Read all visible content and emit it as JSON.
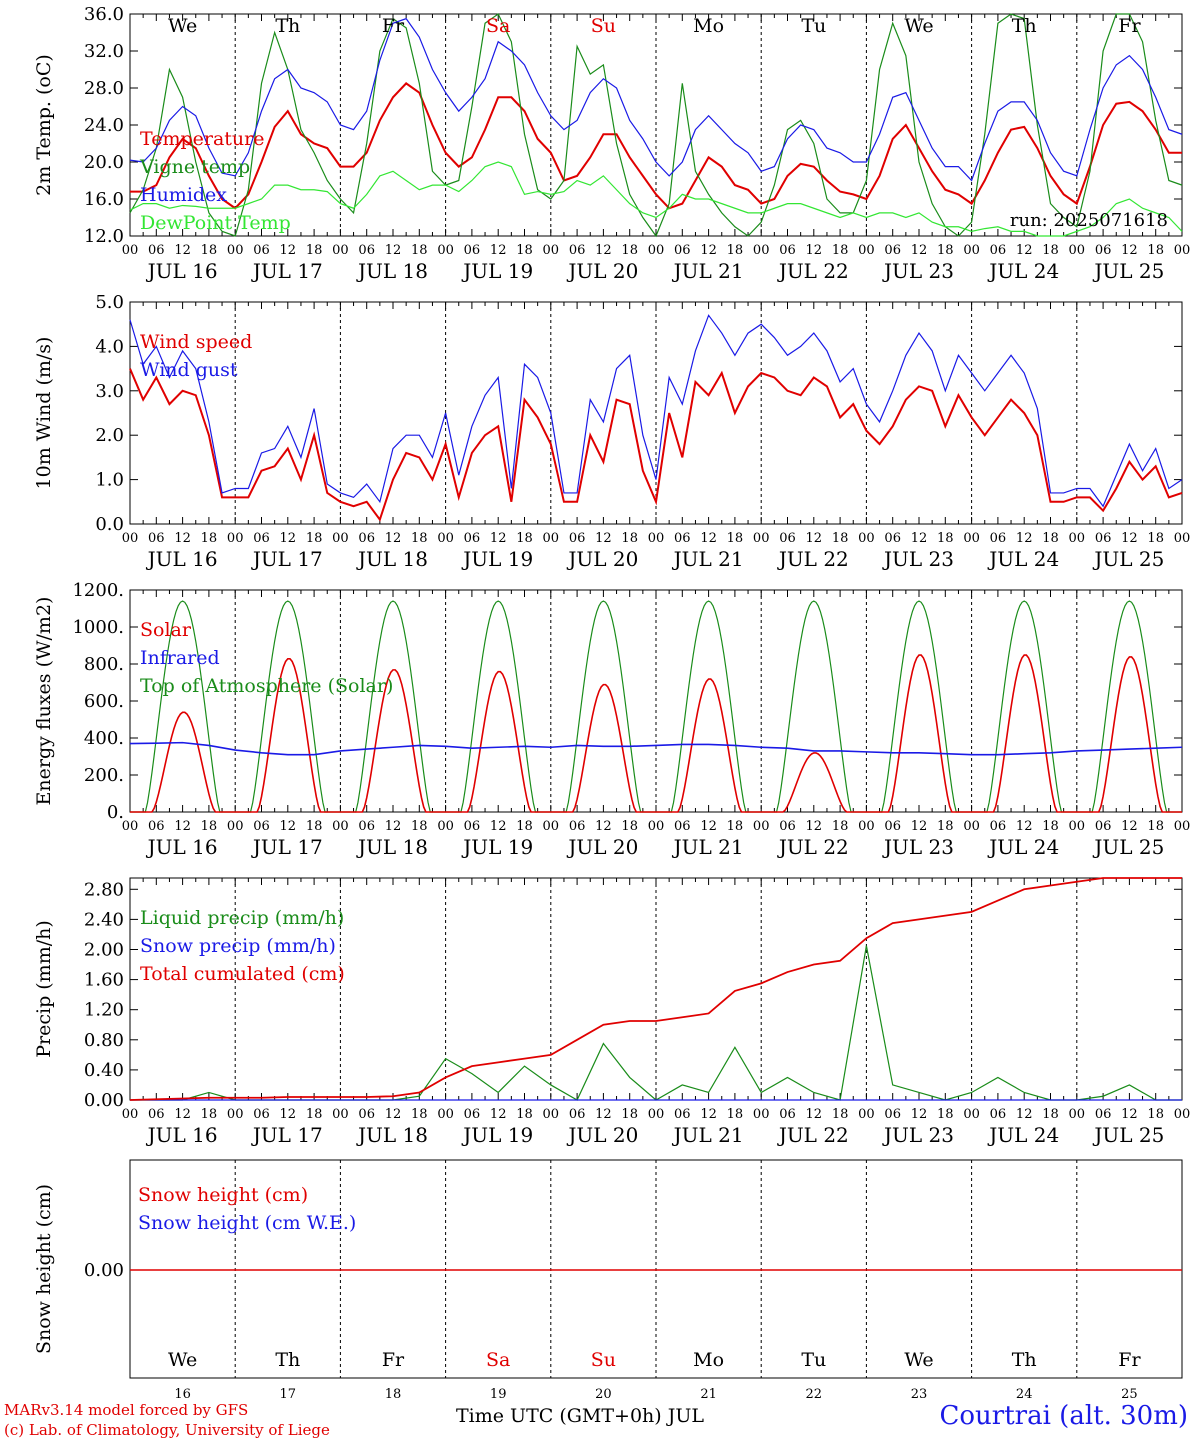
{
  "footer": {
    "model_line": "MARv3.14 model forced by GFS",
    "credit_line": "(c) Lab. of Climatology, University of Liege",
    "axis_title": "Time UTC (GMT+0h) JUL",
    "station": "Courtrai (alt. 30m)"
  },
  "run_label": "run: 2025071618",
  "colors": {
    "red": "#e00000",
    "blue": "#1a1ae6",
    "green": "#1a8c1a",
    "lightgreen": "#33e633",
    "axis": "#000000"
  },
  "days": [
    "We",
    "Th",
    "Fr",
    "Sa",
    "Su",
    "Mo",
    "Tu",
    "We",
    "Th",
    "Fr"
  ],
  "weekend_days": [
    "Sa",
    "Su"
  ],
  "date_labels": [
    "JUL 16",
    "JUL 17",
    "JUL 18",
    "JUL 19",
    "JUL 20",
    "JUL 21",
    "JUL 22",
    "JUL 23",
    "JUL 24",
    "JUL 25"
  ],
  "day_numbers": [
    "16",
    "17",
    "18",
    "19",
    "20",
    "21",
    "22",
    "23",
    "24",
    "25"
  ],
  "hour_labels": [
    "00",
    "06",
    "12",
    "18"
  ],
  "chart_data": [
    {
      "type": "line",
      "ylabel": "2m Temp. (oC)",
      "yticks": [
        "12.0",
        "16.0",
        "20.0",
        "24.0",
        "28.0",
        "32.0",
        "36.0"
      ],
      "ylim": [
        12,
        36
      ],
      "x_hours": [
        0,
        3,
        6,
        9,
        12,
        15,
        18,
        21,
        24,
        27,
        30,
        33,
        36,
        39,
        42,
        45,
        48,
        51,
        54,
        57,
        60,
        63,
        66,
        69,
        72,
        75,
        78,
        81,
        84,
        87,
        90,
        93,
        96,
        99,
        102,
        105,
        108,
        111,
        114,
        117,
        120,
        123,
        126,
        129,
        132,
        135,
        138,
        141,
        144,
        147,
        150,
        153,
        156,
        159,
        162,
        165,
        168,
        171,
        174,
        177,
        180,
        183,
        186,
        189,
        192,
        195,
        198,
        201,
        204,
        207,
        210,
        213,
        216,
        219,
        222,
        225,
        228,
        231,
        234,
        237,
        240
      ],
      "series": [
        {
          "name": "Temperature",
          "color": "red",
          "values": [
            16.8,
            16.8,
            17.5,
            20.5,
            22.5,
            21.5,
            18.5,
            16.0,
            15.0,
            16.5,
            20.0,
            23.8,
            25.5,
            23.0,
            22.0,
            21.5,
            19.5,
            19.5,
            21.0,
            24.5,
            27.0,
            28.5,
            27.5,
            24.0,
            21.0,
            19.5,
            20.5,
            23.5,
            27.0,
            27.0,
            25.5,
            22.5,
            21.0,
            18.0,
            18.5,
            20.5,
            23.0,
            23.0,
            20.5,
            18.5,
            16.5,
            15.0,
            15.5,
            18.0,
            20.5,
            19.5,
            17.5,
            17.0,
            15.5,
            16.0,
            18.5,
            19.8,
            19.5,
            18.0,
            16.8,
            16.5,
            16.0,
            18.5,
            22.5,
            24.0,
            21.5,
            19.0,
            17.0,
            16.5,
            15.5,
            18.0,
            21.0,
            23.5,
            23.8,
            21.5,
            18.5,
            16.5,
            15.5,
            19.5,
            24.0,
            26.3,
            26.5,
            25.5,
            23.5,
            21.0,
            21.0
          ]
        },
        {
          "name": "Vigne temp",
          "color": "green",
          "values": [
            14.5,
            17.0,
            21.5,
            30.0,
            27.0,
            20.0,
            14.5,
            12.5,
            12.0,
            17.0,
            28.5,
            34.0,
            30.0,
            23.5,
            21.0,
            18.0,
            16.0,
            14.5,
            22.0,
            32.0,
            35.5,
            34.5,
            28.5,
            19.0,
            17.5,
            18.0,
            26.0,
            35.0,
            36.0,
            33.0,
            23.0,
            17.0,
            16.0,
            18.0,
            32.5,
            29.5,
            30.5,
            22.0,
            16.5,
            14.0,
            12.0,
            15.5,
            28.5,
            19.0,
            16.5,
            14.5,
            13.0,
            12.0,
            13.5,
            17.5,
            23.5,
            24.5,
            22.0,
            16.0,
            14.5,
            14.5,
            18.0,
            30.0,
            35.0,
            31.5,
            20.0,
            15.5,
            13.0,
            12.0,
            13.5,
            23.0,
            35.0,
            37.0,
            35.5,
            24.0,
            15.5,
            14.0,
            13.0,
            19.0,
            32.0,
            36.5,
            37.0,
            33.0,
            24.5,
            18.0,
            17.5
          ]
        },
        {
          "name": "Humidex",
          "color": "blue",
          "values": [
            20.2,
            20.0,
            21.5,
            24.5,
            26.0,
            25.0,
            21.5,
            18.8,
            18.5,
            21.0,
            25.5,
            29.0,
            30.0,
            28.0,
            27.5,
            26.5,
            24.0,
            23.5,
            25.5,
            31.0,
            35.0,
            35.5,
            33.5,
            30.0,
            27.5,
            25.5,
            27.0,
            29.0,
            33.0,
            32.0,
            30.5,
            27.5,
            25.0,
            23.5,
            24.5,
            27.5,
            29.0,
            28.0,
            24.5,
            22.5,
            20.0,
            18.5,
            20.0,
            23.5,
            25.0,
            23.5,
            22.0,
            21.0,
            19.0,
            19.5,
            22.5,
            24.0,
            23.5,
            21.5,
            21.0,
            20.0,
            20.0,
            23.0,
            27.0,
            27.5,
            24.5,
            21.5,
            19.5,
            19.5,
            18.0,
            22.0,
            25.5,
            26.5,
            26.5,
            24.5,
            21.0,
            19.0,
            18.5,
            23.5,
            28.0,
            30.5,
            31.5,
            30.0,
            27.0,
            23.5,
            23.0
          ]
        },
        {
          "name": "DewPoint Temp",
          "color": "lightgreen",
          "values": [
            14.8,
            15.5,
            15.5,
            15.0,
            15.3,
            15.2,
            15.0,
            15.0,
            15.0,
            15.5,
            16.0,
            17.5,
            17.5,
            17.0,
            17.0,
            16.8,
            15.5,
            15.0,
            16.5,
            18.5,
            19.0,
            18.0,
            17.0,
            17.5,
            17.5,
            16.8,
            18.0,
            19.5,
            20.0,
            19.5,
            16.5,
            16.8,
            16.5,
            16.8,
            18.0,
            17.5,
            18.5,
            17.0,
            15.5,
            14.5,
            14.0,
            15.0,
            16.5,
            16.0,
            16.0,
            15.5,
            15.0,
            14.5,
            14.5,
            15.0,
            15.5,
            15.5,
            15.0,
            14.5,
            14.0,
            14.5,
            14.0,
            14.5,
            14.5,
            14.0,
            14.5,
            13.5,
            13.0,
            13.0,
            12.5,
            12.8,
            13.0,
            12.5,
            12.5,
            12.0,
            12.0,
            12.0,
            12.5,
            13.0,
            14.0,
            15.5,
            16.0,
            15.0,
            14.5,
            14.0,
            12.5
          ]
        }
      ]
    },
    {
      "type": "line",
      "ylabel": "10m Wind (m/s)",
      "yticks": [
        "0.0",
        "1.0",
        "2.0",
        "3.0",
        "4.0",
        "5.0"
      ],
      "ylim": [
        0,
        5
      ],
      "x_hours": [
        0,
        3,
        6,
        9,
        12,
        15,
        18,
        21,
        24,
        27,
        30,
        33,
        36,
        39,
        42,
        45,
        48,
        51,
        54,
        57,
        60,
        63,
        66,
        69,
        72,
        75,
        78,
        81,
        84,
        87,
        90,
        93,
        96,
        99,
        102,
        105,
        108,
        111,
        114,
        117,
        120,
        123,
        126,
        129,
        132,
        135,
        138,
        141,
        144,
        147,
        150,
        153,
        156,
        159,
        162,
        165,
        168,
        171,
        174,
        177,
        180,
        183,
        186,
        189,
        192,
        195,
        198,
        201,
        204,
        207,
        210,
        213,
        216,
        219,
        222,
        225,
        228,
        231,
        234,
        237,
        240
      ],
      "series": [
        {
          "name": "Wind speed",
          "color": "red",
          "values": [
            3.5,
            2.8,
            3.3,
            2.7,
            3.0,
            2.9,
            2.0,
            0.6,
            0.6,
            0.6,
            1.2,
            1.3,
            1.7,
            1.0,
            2.0,
            0.7,
            0.5,
            0.4,
            0.5,
            0.1,
            1.0,
            1.6,
            1.5,
            1.0,
            1.8,
            0.6,
            1.6,
            2.0,
            2.2,
            0.5,
            2.8,
            2.4,
            1.8,
            0.5,
            0.5,
            2.0,
            1.4,
            2.8,
            2.7,
            1.2,
            0.5,
            2.5,
            1.5,
            3.2,
            2.9,
            3.4,
            2.5,
            3.1,
            3.4,
            3.3,
            3.0,
            2.9,
            3.3,
            3.1,
            2.4,
            2.7,
            2.1,
            1.8,
            2.2,
            2.8,
            3.1,
            3.0,
            2.2,
            2.9,
            2.4,
            2.0,
            2.4,
            2.8,
            2.5,
            2.0,
            0.5,
            0.5,
            0.6,
            0.6,
            0.3,
            0.8,
            1.4,
            1.0,
            1.3,
            0.6,
            0.7
          ]
        },
        {
          "name": "Wind gust",
          "color": "blue",
          "values": [
            4.6,
            3.6,
            4.0,
            3.3,
            3.9,
            3.5,
            2.3,
            0.7,
            0.8,
            0.8,
            1.6,
            1.7,
            2.2,
            1.5,
            2.6,
            0.9,
            0.7,
            0.6,
            0.9,
            0.5,
            1.7,
            2.0,
            2.0,
            1.5,
            2.5,
            1.1,
            2.2,
            2.9,
            3.3,
            0.8,
            3.6,
            3.3,
            2.5,
            0.7,
            0.7,
            2.8,
            2.3,
            3.5,
            3.8,
            2.0,
            1.0,
            3.3,
            2.7,
            3.9,
            4.7,
            4.3,
            3.8,
            4.3,
            4.5,
            4.2,
            3.8,
            4.0,
            4.3,
            3.9,
            3.2,
            3.5,
            2.7,
            2.3,
            3.0,
            3.8,
            4.3,
            3.9,
            3.0,
            3.8,
            3.4,
            3.0,
            3.4,
            3.8,
            3.4,
            2.6,
            0.7,
            0.7,
            0.8,
            0.8,
            0.4,
            1.1,
            1.8,
            1.2,
            1.7,
            0.8,
            1.0
          ]
        }
      ]
    },
    {
      "type": "line",
      "ylabel": "Energy fluxes (W/m2)",
      "yticks": [
        "0.",
        "200.",
        "400.",
        "600.",
        "800.",
        "1000.",
        "1200."
      ],
      "ylim": [
        0,
        1200
      ],
      "series_notes": "Solar and top-of-atmosphere daily bell curves; infrared roughly flat near 330-400 W/m2",
      "series": [
        {
          "name": "Solar",
          "color": "red",
          "daily_peaks": [
            540,
            830,
            770,
            760,
            690,
            720,
            320,
            850,
            850,
            840
          ]
        },
        {
          "name": "Infrared",
          "color": "blue",
          "values": [
            370,
            372,
            375,
            360,
            335,
            320,
            310,
            310,
            330,
            340,
            350,
            360,
            355,
            345,
            350,
            355,
            350,
            360,
            355,
            355,
            360,
            365,
            365,
            360,
            350,
            345,
            330,
            330,
            325,
            320,
            320,
            315,
            310,
            310,
            315,
            320,
            330,
            335,
            340,
            345,
            350
          ]
        },
        {
          "name": "Top of Atmosphere (Solar)",
          "color": "green",
          "daily_peak": 1140
        }
      ]
    },
    {
      "type": "line",
      "ylabel": "Precip (mm/h)",
      "yticks": [
        "0.00",
        "0.40",
        "0.80",
        "1.20",
        "1.60",
        "2.00",
        "2.40",
        "2.80"
      ],
      "ylim": [
        0,
        2.95
      ],
      "x_hours": [
        0,
        6,
        12,
        18,
        24,
        30,
        36,
        42,
        48,
        54,
        60,
        66,
        72,
        78,
        84,
        90,
        96,
        102,
        108,
        114,
        120,
        126,
        132,
        138,
        144,
        150,
        156,
        162,
        168,
        174,
        180,
        186,
        192,
        198,
        204,
        210,
        216,
        222,
        228,
        234,
        240
      ],
      "series": [
        {
          "name": "Liquid precip (mm/h)",
          "color": "green",
          "values": [
            0.0,
            0.0,
            0.0,
            0.1,
            0.0,
            0.0,
            0.0,
            0.0,
            0.0,
            0.0,
            0.0,
            0.05,
            0.55,
            0.35,
            0.1,
            0.45,
            0.2,
            0.0,
            0.75,
            0.3,
            0.0,
            0.2,
            0.1,
            0.7,
            0.1,
            0.3,
            0.1,
            0.0,
            2.05,
            0.2,
            0.1,
            0.0,
            0.1,
            0.3,
            0.1,
            0.0,
            0.0,
            0.05,
            0.2,
            0.0,
            0.0
          ]
        },
        {
          "name": "Snow precip (mm/h)",
          "color": "blue",
          "values": [
            0,
            0,
            0,
            0,
            0,
            0,
            0,
            0,
            0,
            0,
            0,
            0,
            0,
            0,
            0,
            0,
            0,
            0,
            0,
            0,
            0,
            0,
            0,
            0,
            0,
            0,
            0,
            0,
            0,
            0,
            0,
            0,
            0,
            0,
            0,
            0,
            0,
            0,
            0,
            0,
            0
          ]
        },
        {
          "name": "Total cumulated (cm)",
          "color": "red",
          "values": [
            0.0,
            0.01,
            0.02,
            0.03,
            0.03,
            0.03,
            0.04,
            0.04,
            0.04,
            0.04,
            0.05,
            0.1,
            0.3,
            0.45,
            0.5,
            0.55,
            0.6,
            0.8,
            1.0,
            1.05,
            1.05,
            1.1,
            1.15,
            1.45,
            1.55,
            1.7,
            1.8,
            1.85,
            2.15,
            2.35,
            2.4,
            2.45,
            2.5,
            2.65,
            2.8,
            2.85,
            2.9,
            2.95,
            2.95,
            2.95,
            2.95
          ]
        }
      ]
    },
    {
      "type": "line",
      "ylabel": "Snow height (cm)",
      "yticks": [
        "0.00"
      ],
      "series": [
        {
          "name": "Snow height (cm)",
          "color": "red",
          "values": [
            0.0,
            0.0
          ]
        },
        {
          "name": "Snow height (cm W.E.)",
          "color": "blue",
          "values": [
            0.0,
            0.0
          ]
        }
      ]
    }
  ]
}
